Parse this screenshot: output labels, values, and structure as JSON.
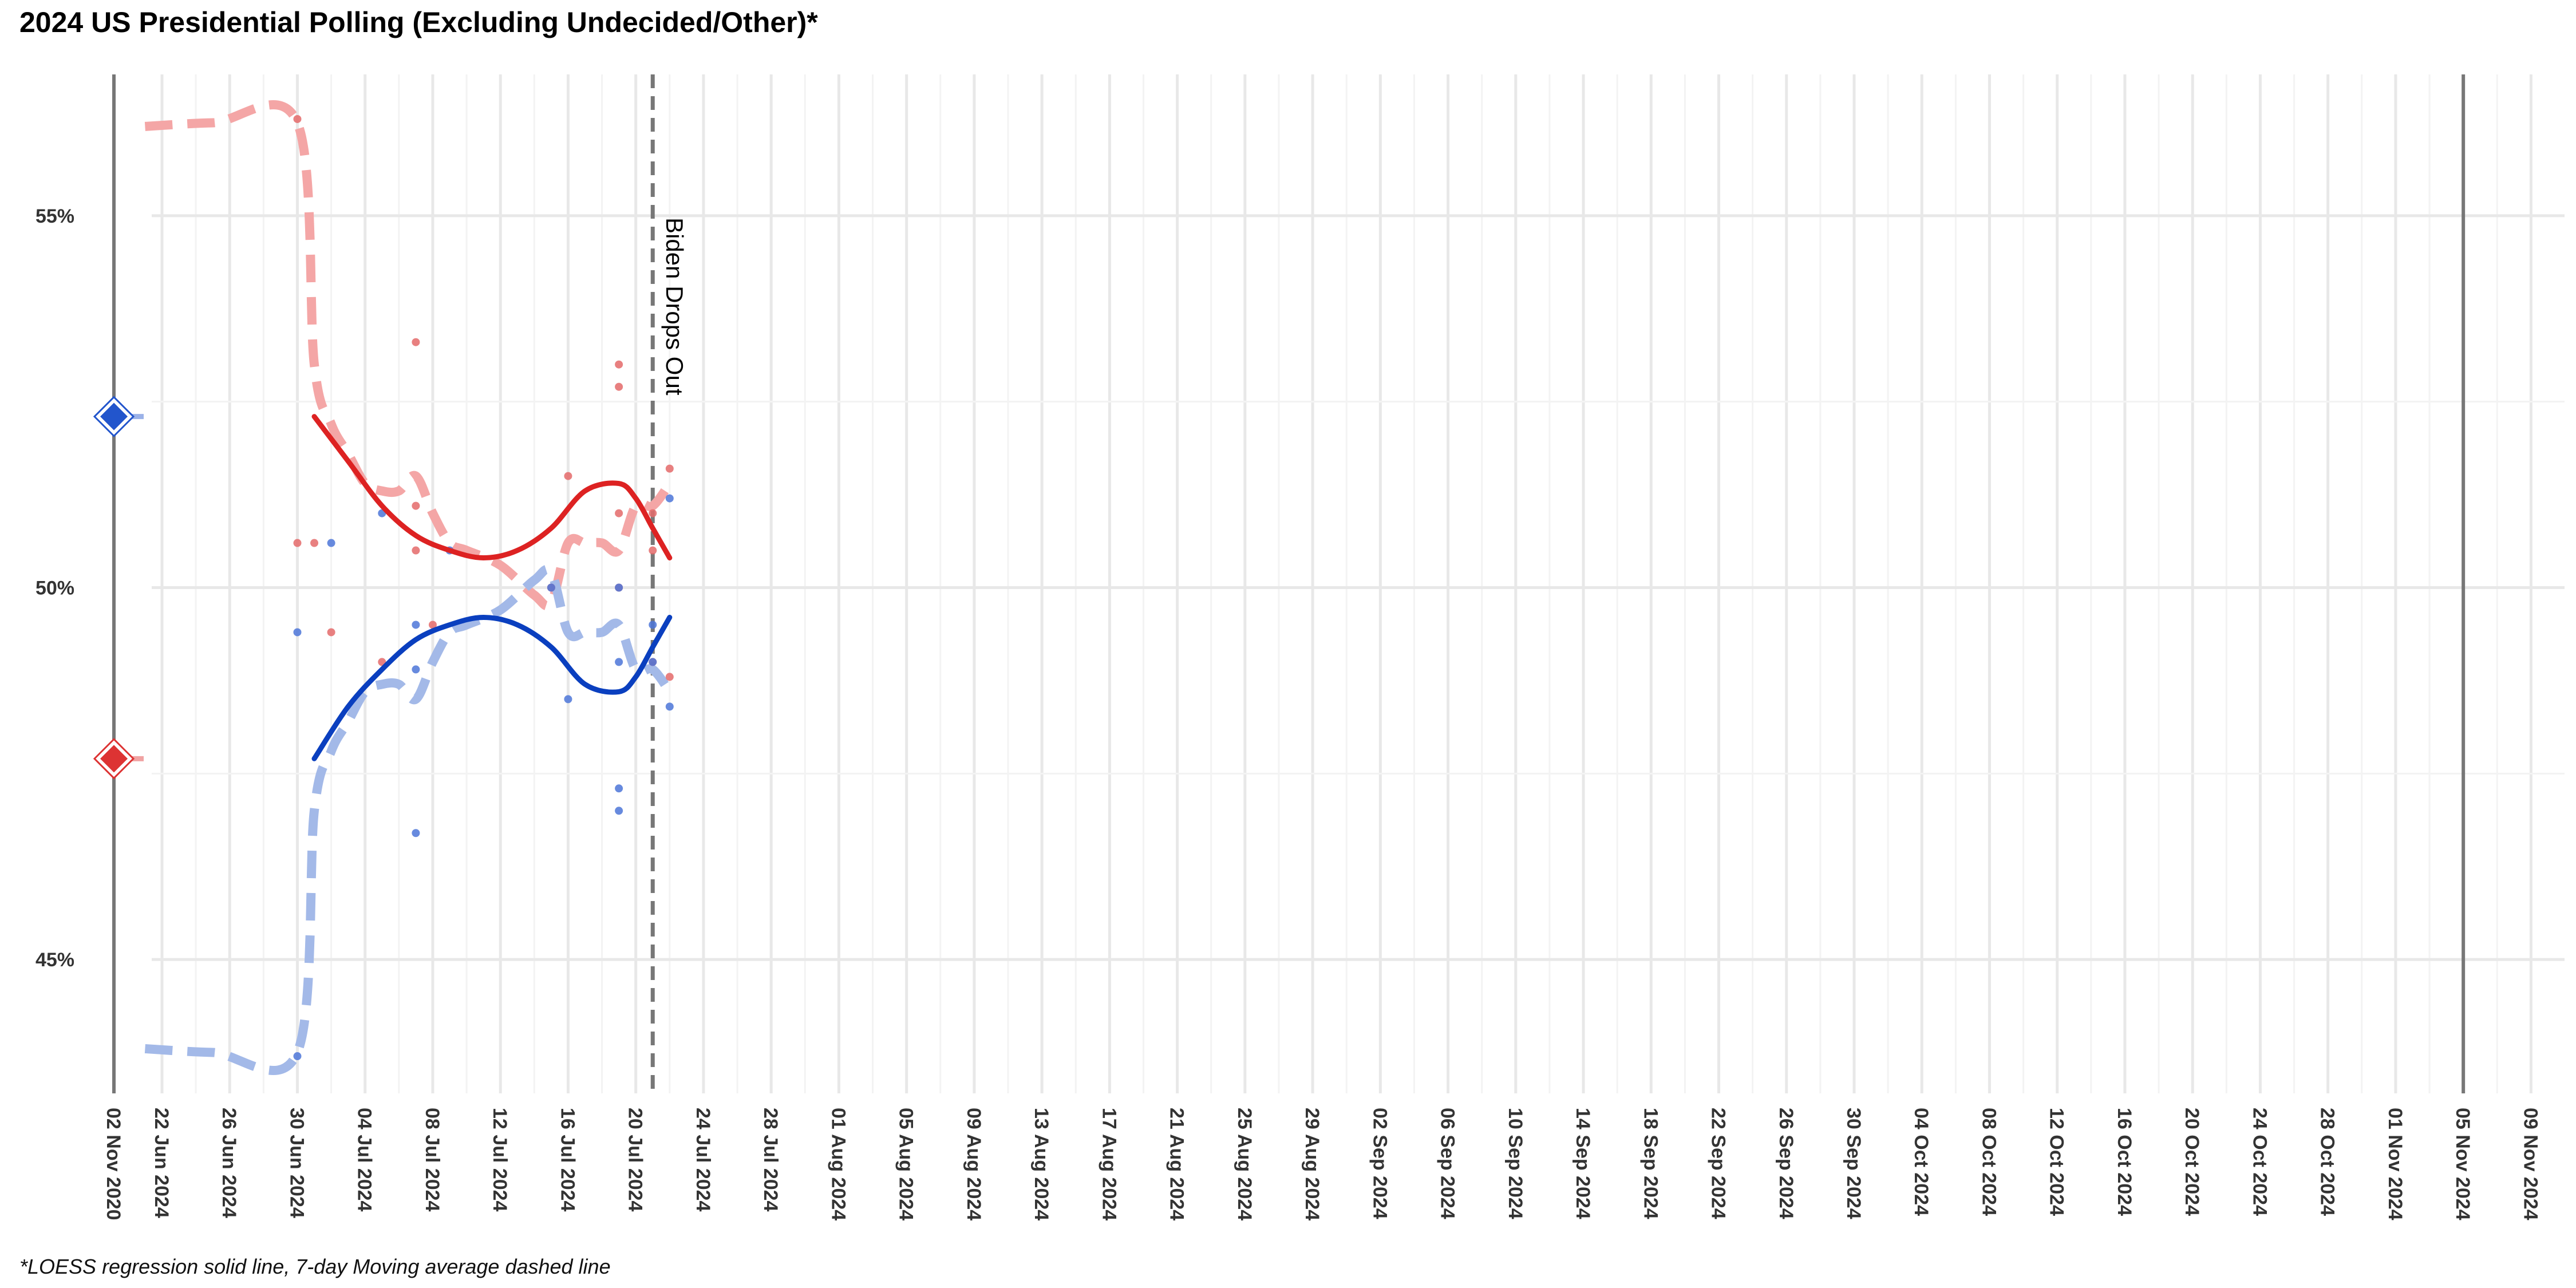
{
  "chart_data": {
    "type": "line",
    "title": "2024 US Presidential Polling (Excluding Undecided/Other)*",
    "caption": "*LOESS regression solid line, 7-day Moving average dashed line",
    "xlabel": "",
    "ylabel": "",
    "y_axis": {
      "range": [
        43.2,
        56.9
      ],
      "ticks": [
        45,
        50,
        55
      ],
      "tick_format": "percent"
    },
    "x_axis": {
      "tick_labels": [
        "02 Nov 2020",
        "22 Jun 2024",
        "26 Jun 2024",
        "30 Jun 2024",
        "04 Jul 2024",
        "08 Jul 2024",
        "12 Jul 2024",
        "16 Jul 2024",
        "20 Jul 2024",
        "24 Jul 2024",
        "28 Jul 2024",
        "01 Aug 2024",
        "05 Aug 2024",
        "09 Aug 2024",
        "13 Aug 2024",
        "17 Aug 2024",
        "21 Aug 2024",
        "25 Aug 2024",
        "29 Aug 2024",
        "02 Sep 2024",
        "06 Sep 2024",
        "10 Sep 2024",
        "14 Sep 2024",
        "18 Sep 2024",
        "22 Sep 2024",
        "26 Sep 2024",
        "30 Sep 2024",
        "04 Oct 2024",
        "08 Oct 2024",
        "12 Oct 2024",
        "16 Oct 2024",
        "20 Oct 2024",
        "24 Oct 2024",
        "28 Oct 2024",
        "01 Nov 2024",
        "05 Nov 2024",
        "09 Nov 2024"
      ]
    },
    "reference_lines": [
      {
        "date": "02 Nov 2020",
        "style": "solid",
        "color": "#777777"
      },
      {
        "date": "05 Nov 2024",
        "style": "solid",
        "color": "#777777"
      },
      {
        "date": "21 Jul 2024",
        "style": "dashed",
        "color": "#777777",
        "label": "Biden Drops Out"
      }
    ],
    "markers_2020_result": [
      {
        "party": "Democratic",
        "value": 52.3,
        "color": "#2255cc"
      },
      {
        "party": "Republican",
        "value": 47.7,
        "color": "#dd3333"
      }
    ],
    "grid": true,
    "legend": "none",
    "series": [
      {
        "party": "Republican",
        "kind": "loess",
        "style": "solid",
        "color": "#dd2222",
        "x": [
          "01 Jul 2024",
          "03 Jul 2024",
          "05 Jul 2024",
          "07 Jul 2024",
          "09 Jul 2024",
          "11 Jul 2024",
          "13 Jul 2024",
          "15 Jul 2024",
          "17 Jul 2024",
          "19 Jul 2024",
          "20 Jul 2024",
          "21 Jul 2024",
          "22 Jul 2024"
        ],
        "y": [
          52.3,
          51.7,
          51.1,
          50.7,
          50.5,
          50.4,
          50.5,
          50.8,
          51.3,
          51.4,
          51.2,
          50.8,
          50.4
        ]
      },
      {
        "party": "Democratic",
        "kind": "loess",
        "style": "solid",
        "color": "#0a3fbf",
        "x": [
          "01 Jul 2024",
          "03 Jul 2024",
          "05 Jul 2024",
          "07 Jul 2024",
          "09 Jul 2024",
          "11 Jul 2024",
          "13 Jul 2024",
          "15 Jul 2024",
          "17 Jul 2024",
          "19 Jul 2024",
          "20 Jul 2024",
          "21 Jul 2024",
          "22 Jul 2024"
        ],
        "y": [
          47.7,
          48.4,
          48.9,
          49.3,
          49.5,
          49.6,
          49.5,
          49.2,
          48.7,
          48.6,
          48.8,
          49.2,
          49.6
        ]
      },
      {
        "party": "Republican",
        "kind": "moving_average_7d",
        "style": "dashed",
        "color": "#f4a6a6",
        "x": [
          "21 Jun 2024",
          "25 Jun 2024",
          "30 Jun 2024",
          "01 Jul 2024",
          "02 Jul 2024",
          "03 Jul 2024",
          "04 Jul 2024",
          "05 Jul 2024",
          "06 Jul 2024",
          "07 Jul 2024",
          "08 Jul 2024",
          "09 Jul 2024",
          "10 Jul 2024",
          "12 Jul 2024",
          "14 Jul 2024",
          "15 Jul 2024",
          "16 Jul 2024",
          "17 Jul 2024",
          "18 Jul 2024",
          "19 Jul 2024",
          "20 Jul 2024",
          "21 Jul 2024",
          "22 Jul 2024"
        ],
        "y": [
          56.2,
          56.25,
          56.25,
          53.0,
          52.2,
          51.8,
          51.4,
          51.3,
          51.3,
          51.5,
          51.0,
          50.6,
          50.5,
          50.3,
          49.9,
          49.8,
          50.6,
          50.6,
          50.6,
          50.5,
          51.1,
          51.1,
          51.4
        ]
      },
      {
        "party": "Democratic",
        "kind": "moving_average_7d",
        "style": "dashed",
        "color": "#a3b9e8",
        "x": [
          "21 Jun 2024",
          "25 Jun 2024",
          "30 Jun 2024",
          "01 Jul 2024",
          "02 Jul 2024",
          "03 Jul 2024",
          "04 Jul 2024",
          "05 Jul 2024",
          "06 Jul 2024",
          "07 Jul 2024",
          "08 Jul 2024",
          "09 Jul 2024",
          "10 Jul 2024",
          "12 Jul 2024",
          "14 Jul 2024",
          "15 Jul 2024",
          "16 Jul 2024",
          "17 Jul 2024",
          "18 Jul 2024",
          "19 Jul 2024",
          "20 Jul 2024",
          "21 Jul 2024",
          "22 Jul 2024"
        ],
        "y": [
          43.8,
          43.75,
          43.75,
          47.0,
          47.8,
          48.2,
          48.6,
          48.7,
          48.7,
          48.5,
          49.0,
          49.4,
          49.5,
          49.7,
          50.1,
          50.2,
          49.4,
          49.4,
          49.4,
          49.5,
          48.9,
          48.9,
          48.6
        ]
      },
      {
        "party": "Republican",
        "kind": "poll_points",
        "style": "points",
        "color": "#e46a6a",
        "x": [
          "30 Jun 2024",
          "30 Jun 2024",
          "01 Jul 2024",
          "02 Jul 2024",
          "05 Jul 2024",
          "07 Jul 2024",
          "07 Jul 2024",
          "07 Jul 2024",
          "08 Jul 2024",
          "15 Jul 2024",
          "16 Jul 2024",
          "19 Jul 2024",
          "19 Jul 2024",
          "19 Jul 2024",
          "19 Jul 2024",
          "21 Jul 2024",
          "21 Jul 2024",
          "21 Jul 2024",
          "22 Jul 2024",
          "22 Jul 2024"
        ],
        "y": [
          56.3,
          50.6,
          50.6,
          49.4,
          49.0,
          53.3,
          51.1,
          50.5,
          49.5,
          50.0,
          51.5,
          53.0,
          52.7,
          51.0,
          50.0,
          51.0,
          50.5,
          49.0,
          51.6,
          48.8
        ]
      },
      {
        "party": "Democratic",
        "kind": "poll_points",
        "style": "points",
        "color": "#4c76d8",
        "x": [
          "30 Jun 2024",
          "30 Jun 2024",
          "02 Jul 2024",
          "05 Jul 2024",
          "07 Jul 2024",
          "07 Jul 2024",
          "07 Jul 2024",
          "09 Jul 2024",
          "15 Jul 2024",
          "16 Jul 2024",
          "19 Jul 2024",
          "19 Jul 2024",
          "19 Jul 2024",
          "19 Jul 2024",
          "21 Jul 2024",
          "21 Jul 2024",
          "22 Jul 2024",
          "22 Jul 2024"
        ],
        "y": [
          43.7,
          49.4,
          50.6,
          51.0,
          46.7,
          48.9,
          49.5,
          50.5,
          50.0,
          48.5,
          47.0,
          47.3,
          49.0,
          50.0,
          49.0,
          49.5,
          51.2,
          48.4
        ]
      }
    ]
  }
}
